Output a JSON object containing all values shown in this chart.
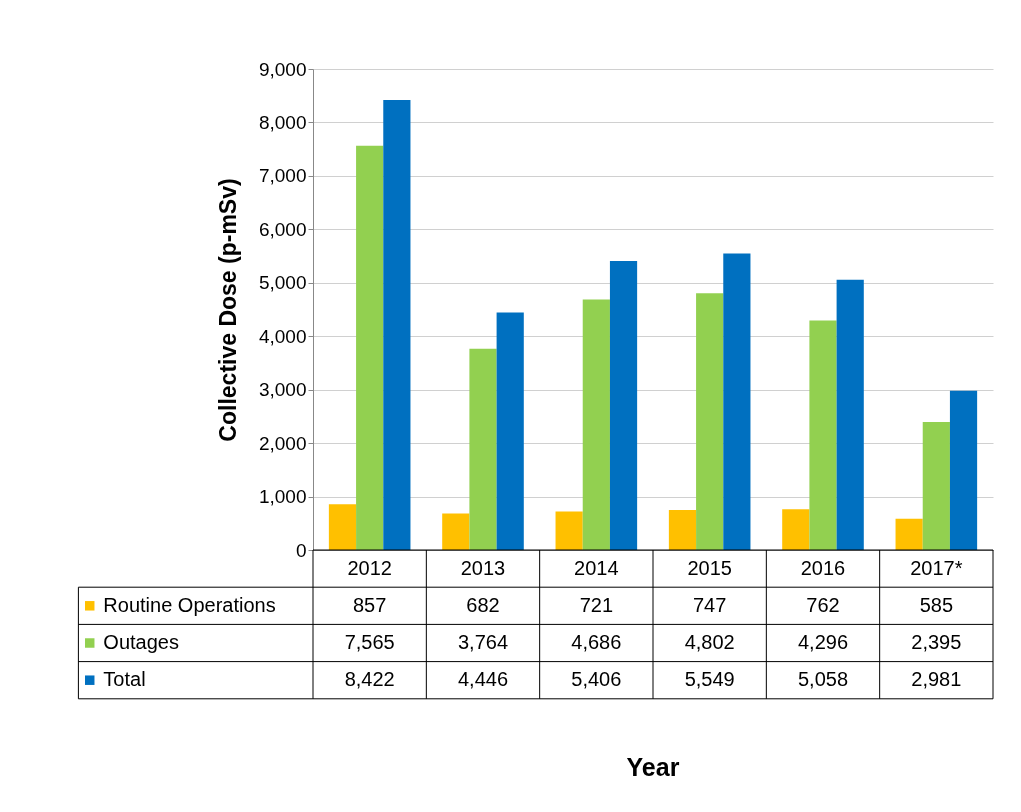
{
  "chart_data": {
    "type": "bar",
    "annotations": [
      "Year"
    ],
    "ylabel": "Collective Dose (p-mSv)",
    "categories": [
      "2012",
      "2013",
      "2014",
      "2015",
      "2016",
      "2017*"
    ],
    "series": [
      {
        "name": "Routine Operations",
        "color": "#ffc000",
        "values": [
          857,
          682,
          721,
          747,
          762,
          585
        ],
        "value_labels": [
          "857",
          "682",
          "721",
          "747",
          "762",
          "585"
        ]
      },
      {
        "name": "Outages",
        "color": "#92d050",
        "values": [
          7565,
          3764,
          4686,
          4802,
          4296,
          2395
        ],
        "value_labels": [
          "7,565",
          "3,764",
          "4,686",
          "4,802",
          "4,296",
          "2,395"
        ]
      },
      {
        "name": "Total",
        "color": "#0070c0",
        "values": [
          8422,
          4446,
          5406,
          5549,
          5058,
          2981
        ],
        "value_labels": [
          "8,422",
          "4,446",
          "5,406",
          "5,549",
          "5,058",
          "2,981"
        ]
      }
    ],
    "ylim": [
      0,
      9000
    ],
    "yticks": [
      0,
      {
        "value": 1000,
        "label": "1,000"
      },
      {
        "value": 2000,
        "label": "2,000"
      },
      {
        "value": 3000,
        "label": "3,000"
      },
      {
        "value": 4000,
        "label": "4,000"
      },
      {
        "value": 5000,
        "label": "5,000"
      },
      {
        "value": 6000,
        "label": "6,000"
      },
      {
        "value": 7000,
        "label": "7,000"
      },
      {
        "value": 8000,
        "label": "8,000"
      },
      {
        "value": 9000,
        "label": "9,000"
      }
    ],
    "grid": "y",
    "legend": "bottom"
  }
}
